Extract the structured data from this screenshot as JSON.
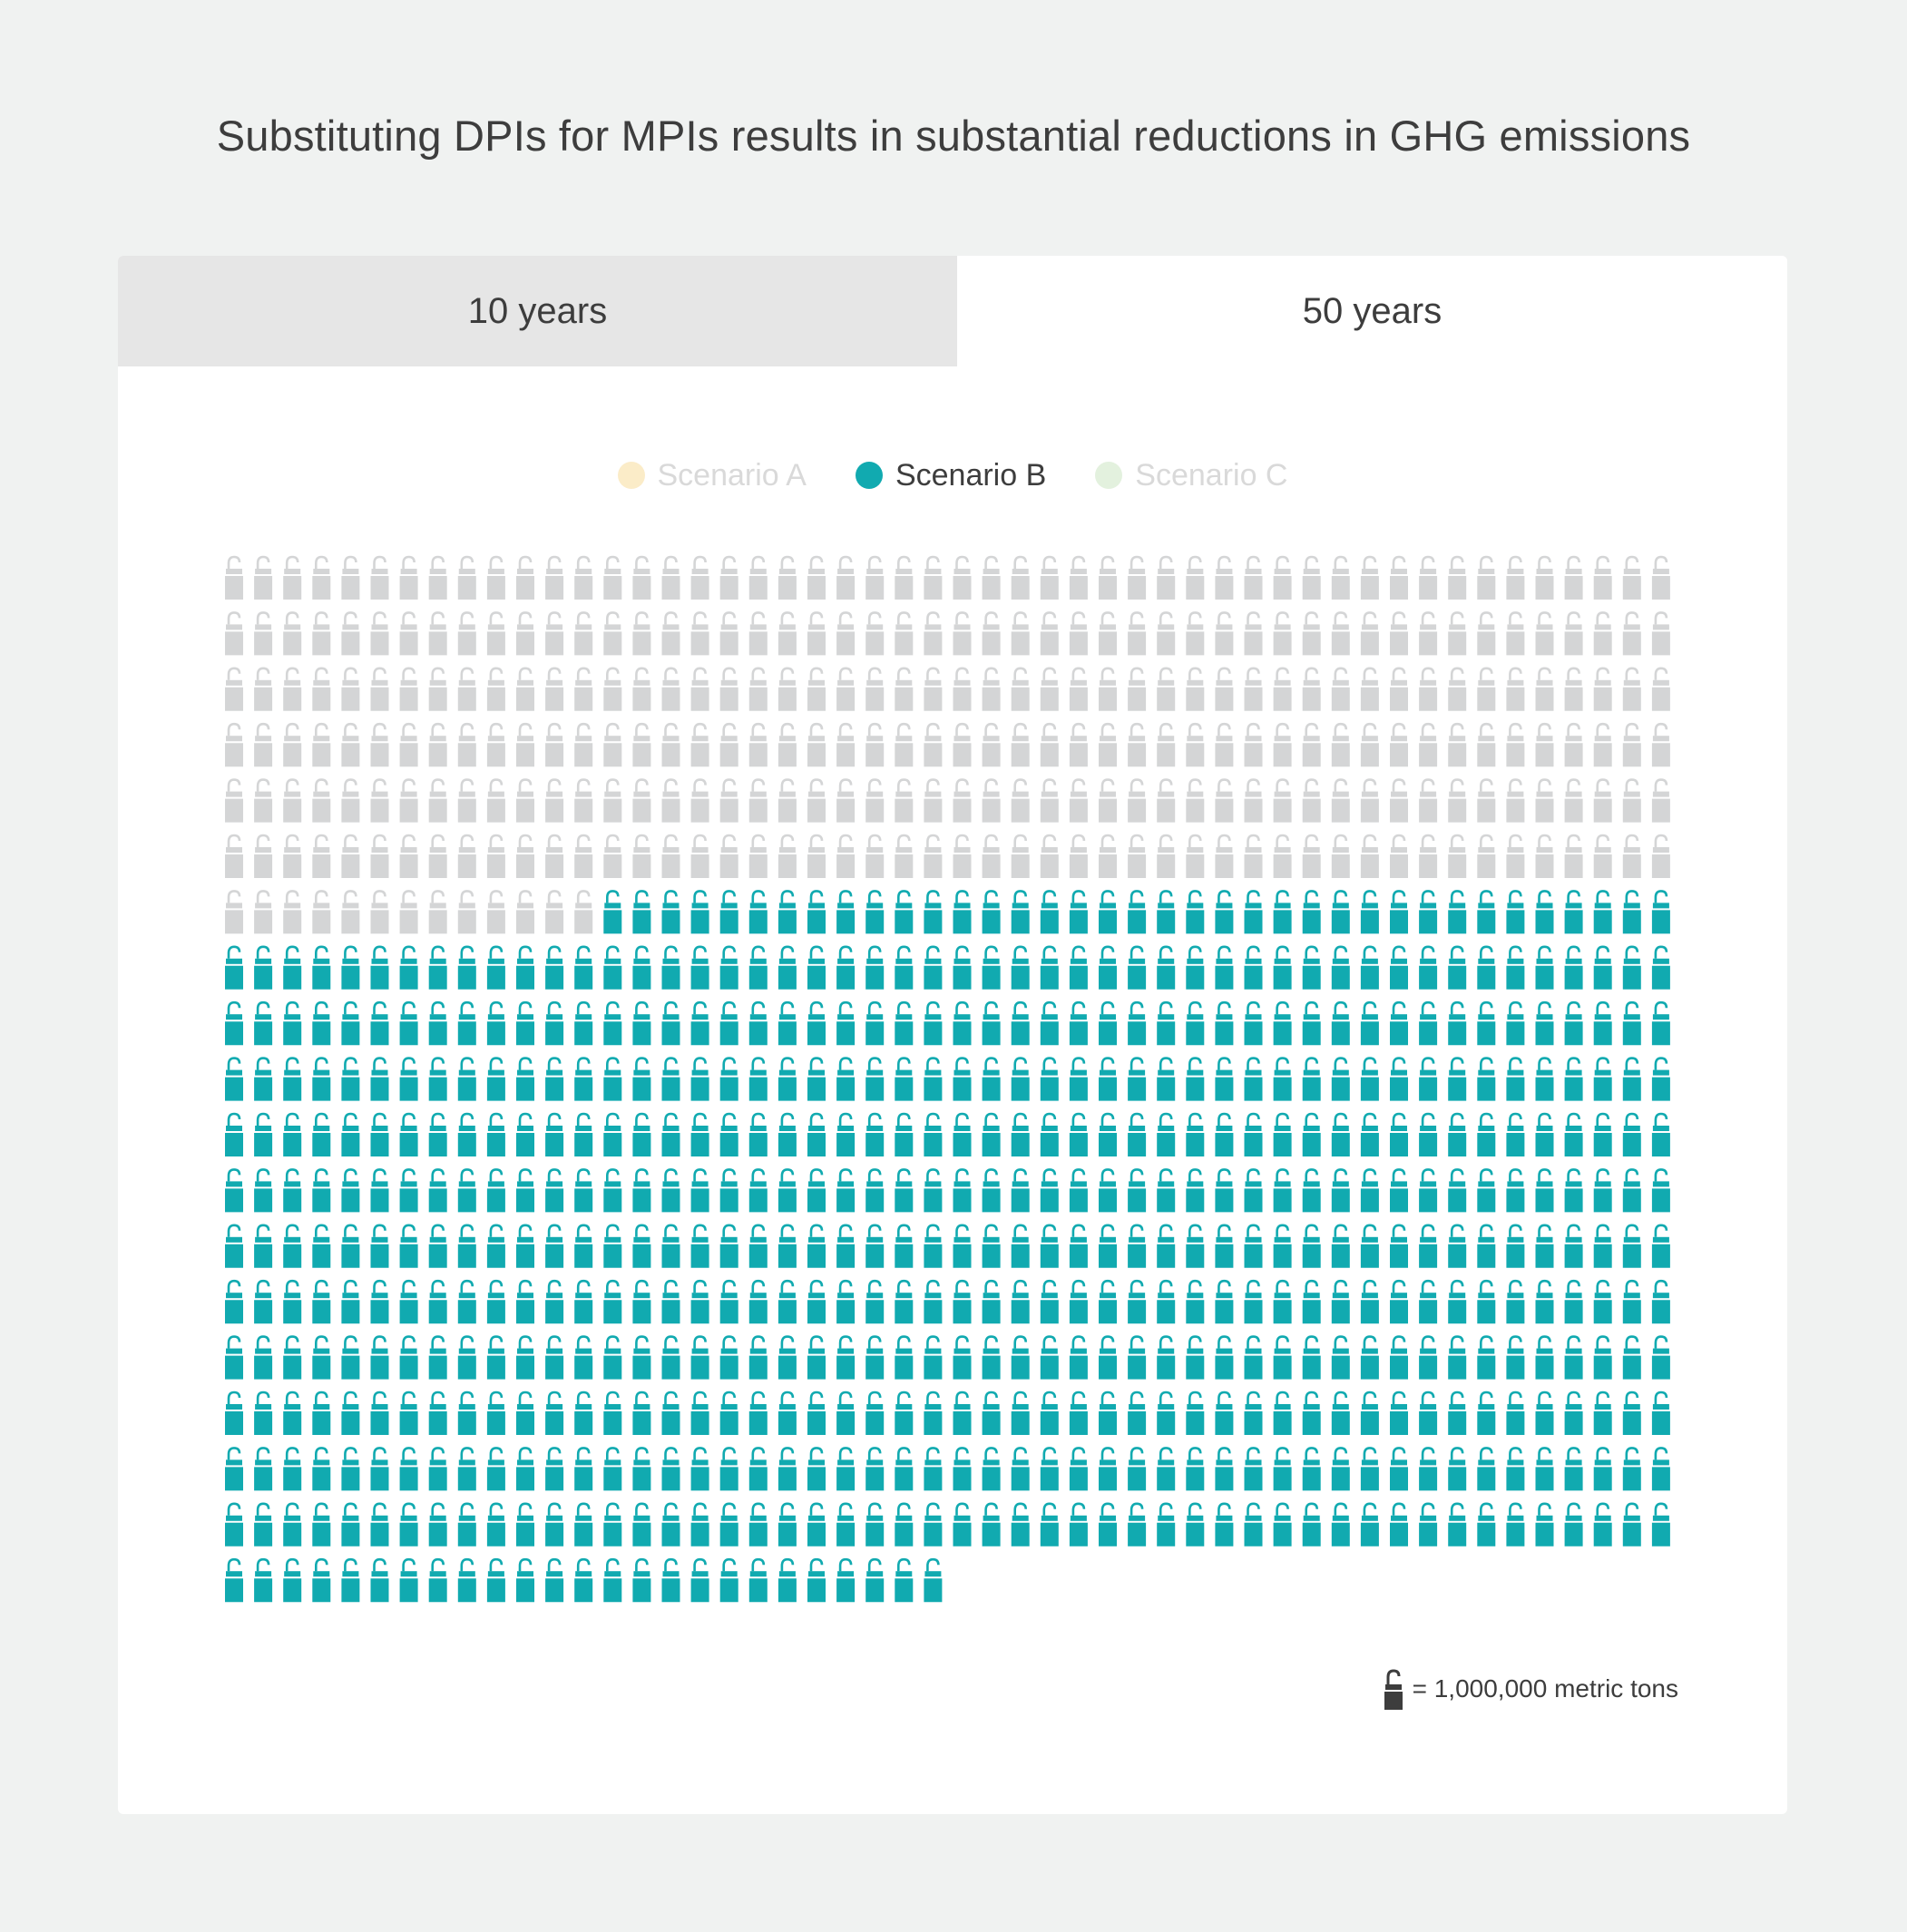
{
  "title": "Substituting DPIs for MPIs results in substantial reductions in GHG emissions",
  "tabs": [
    {
      "label": "10 years",
      "active": false
    },
    {
      "label": "50 years",
      "active": true
    }
  ],
  "legend": [
    {
      "label": "Scenario A",
      "color": "#fbecc8",
      "text_color": "#d9d9d9",
      "active": false
    },
    {
      "label": "Scenario B",
      "color": "#11aab0",
      "text_color": "#3d3d3d",
      "active": true
    },
    {
      "label": "Scenario C",
      "color": "#e3f1de",
      "text_color": "#d9d9d9",
      "active": false
    }
  ],
  "chart_data": {
    "type": "pictogram",
    "unit_label": "= 1,000,000 metric tons",
    "columns": 50,
    "series": [
      {
        "name": "Scenario B",
        "role": "inactive",
        "icons": 313,
        "color": "#d4d5d6"
      },
      {
        "name": "Scenario B",
        "role": "highlighted",
        "icons": 612,
        "color": "#11aab0"
      }
    ],
    "total_icons": 925,
    "icon": "inhaler-icon"
  }
}
